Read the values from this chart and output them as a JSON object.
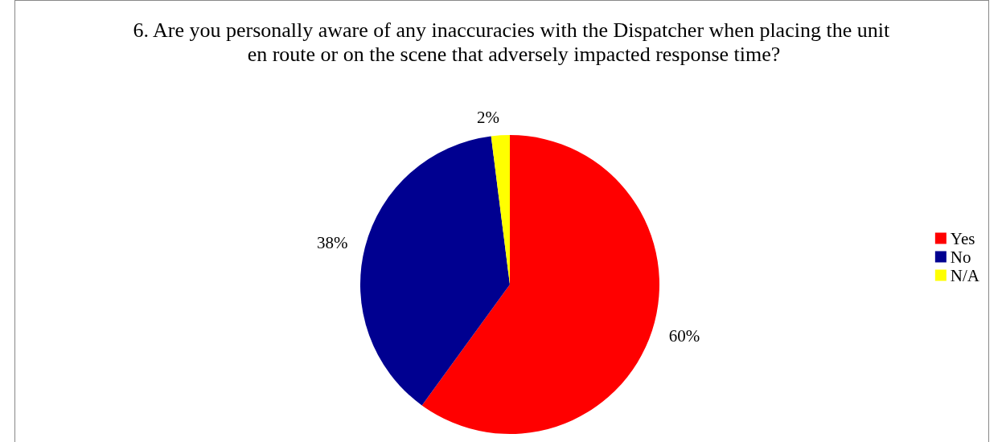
{
  "chart_data": {
    "type": "pie",
    "title": "6. Are you personally aware of any inaccuracies with the Dispatcher when placing the unit en route or on the scene that adversely impacted response time?",
    "categories": [
      "Yes",
      "No",
      "N/A"
    ],
    "values": [
      60,
      38,
      2
    ],
    "colors": [
      "#ff0000",
      "#000090",
      "#ffff00"
    ],
    "value_labels": [
      "60%",
      "38%",
      "2%"
    ],
    "legend": "right"
  }
}
